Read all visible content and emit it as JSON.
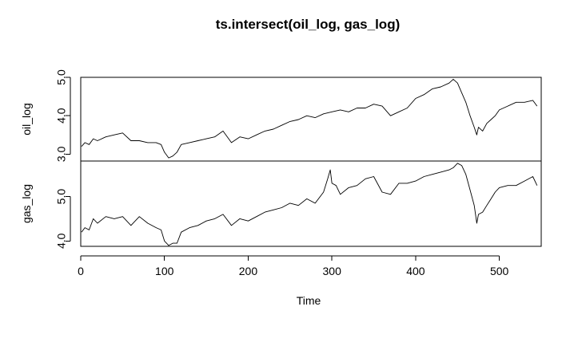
{
  "chart_data": {
    "type": "line",
    "title": "ts.intersect(oil_log, gas_log)",
    "xlabel": "Time",
    "xlim": [
      0,
      550
    ],
    "xticks": [
      0,
      100,
      200,
      300,
      400,
      500
    ],
    "xtick_labels": [
      "0",
      "100",
      "200",
      "300",
      "400",
      "500"
    ],
    "grid": false,
    "panels": [
      {
        "ylabel": "oil_log",
        "ylim": [
          2.82,
          5.0
        ],
        "yticks": [
          3.0,
          4.0,
          5.0
        ],
        "ytick_labels": [
          "3.0",
          "4.0",
          "5.0"
        ],
        "x": [
          1,
          5,
          10,
          15,
          20,
          30,
          40,
          50,
          60,
          70,
          80,
          90,
          96,
          100,
          105,
          110,
          115,
          120,
          130,
          140,
          150,
          160,
          170,
          180,
          190,
          200,
          210,
          220,
          230,
          240,
          250,
          260,
          270,
          280,
          290,
          300,
          310,
          320,
          330,
          340,
          350,
          360,
          370,
          380,
          390,
          400,
          410,
          420,
          430,
          440,
          445,
          450,
          455,
          460,
          465,
          470,
          473,
          475,
          480,
          485,
          490,
          495,
          500,
          510,
          520,
          530,
          540,
          545
        ],
        "y": [
          3.2,
          3.3,
          3.25,
          3.4,
          3.35,
          3.45,
          3.5,
          3.55,
          3.35,
          3.35,
          3.3,
          3.3,
          3.25,
          3.05,
          2.9,
          2.95,
          3.05,
          3.25,
          3.3,
          3.35,
          3.4,
          3.45,
          3.6,
          3.3,
          3.45,
          3.4,
          3.5,
          3.6,
          3.65,
          3.75,
          3.85,
          3.9,
          4.0,
          3.95,
          4.05,
          4.1,
          4.15,
          4.1,
          4.2,
          4.2,
          4.3,
          4.25,
          4.0,
          4.1,
          4.2,
          4.45,
          4.55,
          4.7,
          4.75,
          4.85,
          4.95,
          4.85,
          4.6,
          4.35,
          4.0,
          3.7,
          3.5,
          3.7,
          3.6,
          3.8,
          3.9,
          4.0,
          4.15,
          4.25,
          4.35,
          4.35,
          4.4,
          4.25
        ]
      },
      {
        "ylabel": "gas_log",
        "ylim": [
          3.88,
          5.8
        ],
        "yticks": [
          4.0,
          5.0
        ],
        "ytick_labels": [
          "4.0",
          "5.0"
        ],
        "x": [
          1,
          5,
          10,
          15,
          20,
          30,
          40,
          50,
          60,
          70,
          80,
          90,
          96,
          100,
          105,
          110,
          115,
          120,
          130,
          140,
          150,
          160,
          170,
          180,
          190,
          200,
          210,
          220,
          230,
          240,
          250,
          260,
          270,
          280,
          290,
          295,
          298,
          300,
          305,
          310,
          320,
          330,
          340,
          350,
          360,
          370,
          380,
          390,
          400,
          410,
          420,
          430,
          440,
          445,
          450,
          455,
          460,
          465,
          470,
          473,
          475,
          480,
          485,
          490,
          495,
          500,
          510,
          520,
          530,
          540,
          545
        ],
        "y": [
          4.2,
          4.3,
          4.25,
          4.5,
          4.4,
          4.55,
          4.5,
          4.55,
          4.35,
          4.55,
          4.4,
          4.3,
          4.25,
          4.0,
          3.9,
          3.95,
          3.95,
          4.2,
          4.3,
          4.35,
          4.45,
          4.5,
          4.6,
          4.35,
          4.5,
          4.45,
          4.55,
          4.65,
          4.7,
          4.75,
          4.85,
          4.8,
          4.95,
          4.85,
          5.1,
          5.4,
          5.6,
          5.3,
          5.25,
          5.05,
          5.2,
          5.25,
          5.4,
          5.45,
          5.1,
          5.05,
          5.3,
          5.3,
          5.35,
          5.45,
          5.5,
          5.55,
          5.6,
          5.65,
          5.75,
          5.7,
          5.5,
          5.15,
          4.8,
          4.4,
          4.6,
          4.65,
          4.8,
          4.95,
          5.1,
          5.2,
          5.25,
          5.25,
          5.35,
          5.45,
          5.25
        ]
      }
    ]
  }
}
